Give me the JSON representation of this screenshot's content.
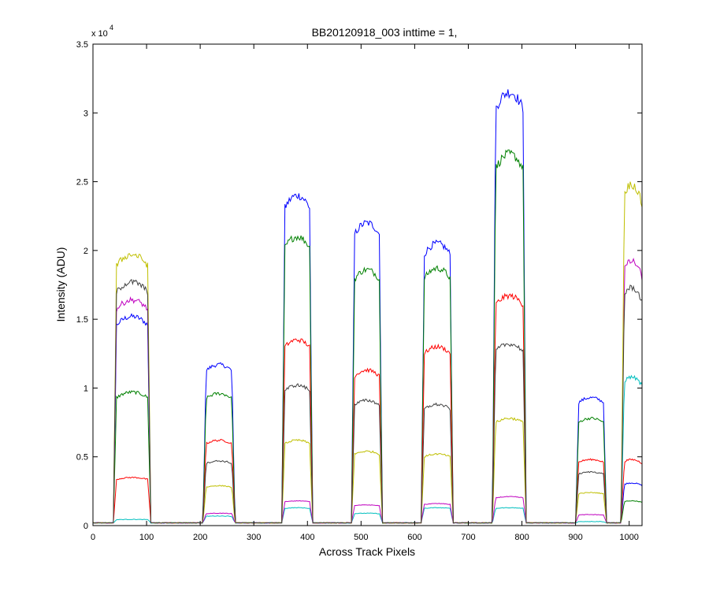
{
  "chart_data": {
    "type": "line",
    "title": "BB20120918_003 inttime = 1,",
    "xlabel": "Across Track Pixels",
    "ylabel": "Intensity (ADU)",
    "xlim": [
      0,
      1024
    ],
    "ylim": [
      0,
      35000
    ],
    "y_exponent_label": "x 10",
    "y_exponent_power": "4",
    "xticks": [
      0,
      100,
      200,
      300,
      400,
      500,
      600,
      700,
      800,
      900,
      1000
    ],
    "xtick_labels": [
      "0",
      "100",
      "200",
      "300",
      "400",
      "500",
      "600",
      "700",
      "800",
      "900",
      "1000"
    ],
    "yticks": [
      0,
      5000,
      10000,
      15000,
      20000,
      25000,
      30000,
      35000
    ],
    "ytick_labels": [
      "0",
      "0.5",
      "1",
      "1.5",
      "2",
      "2.5",
      "3",
      "3.5"
    ],
    "grid": false,
    "baseline": 200,
    "bands": [
      {
        "start": 38,
        "end": 108
      },
      {
        "start": 205,
        "end": 265
      },
      {
        "start": 352,
        "end": 410
      },
      {
        "start": 482,
        "end": 540
      },
      {
        "start": 612,
        "end": 672
      },
      {
        "start": 745,
        "end": 808
      },
      {
        "start": 900,
        "end": 958
      },
      {
        "start": 985,
        "end": 1024
      }
    ],
    "series": [
      {
        "color": "#0000ff",
        "band_levels": [
          15200,
          11700,
          24000,
          22000,
          20500,
          31500,
          9300,
          3100
        ]
      },
      {
        "color": "#008000",
        "band_levels": [
          9700,
          9600,
          21000,
          18600,
          18700,
          27000,
          7800,
          1800
        ]
      },
      {
        "color": "#ff0000",
        "band_levels": [
          3500,
          6200,
          13500,
          11300,
          13000,
          16700,
          4800,
          4800
        ]
      },
      {
        "color": "#00bfbf",
        "band_levels": [
          450,
          700,
          1300,
          900,
          1300,
          1300,
          300,
          10800
        ]
      },
      {
        "color": "#bf00bf",
        "band_levels": [
          16400,
          900,
          1800,
          1500,
          1600,
          2100,
          800,
          19200
        ]
      },
      {
        "color": "#bfbf00",
        "band_levels": [
          19700,
          2900,
          6200,
          5400,
          5200,
          7800,
          2400,
          24800
        ]
      },
      {
        "color": "#404040",
        "band_levels": [
          17700,
          4700,
          10200,
          9100,
          8800,
          13200,
          3900,
          17300
        ]
      }
    ]
  }
}
